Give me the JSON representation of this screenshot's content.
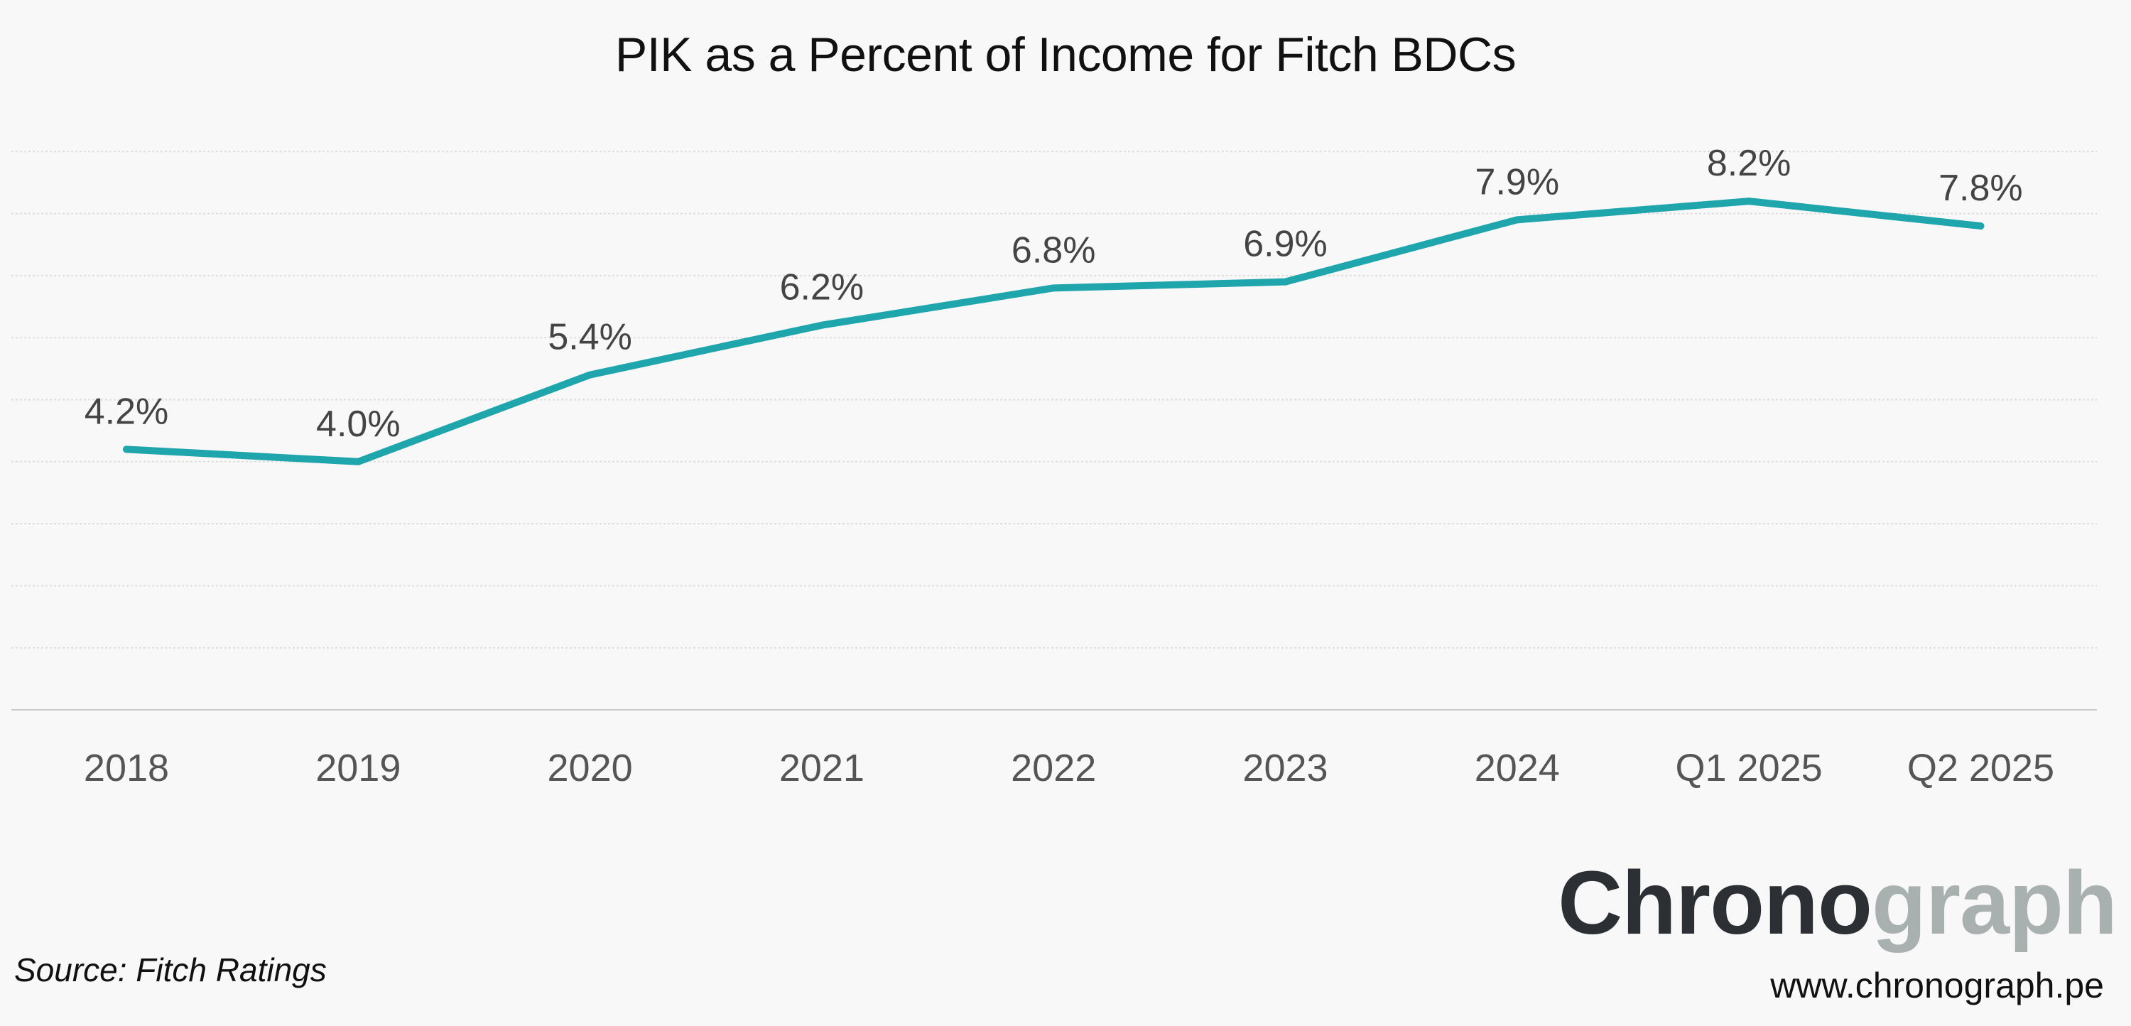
{
  "chart_data": {
    "type": "line",
    "title": "PIK as a Percent of Income for Fitch BDCs",
    "categories": [
      "2018",
      "2019",
      "2020",
      "2021",
      "2022",
      "2023",
      "2024",
      "Q1 2025",
      "Q2 2025"
    ],
    "series": [
      {
        "name": "PIK as a Percent of Income",
        "values": [
          4.2,
          4.0,
          5.4,
          6.2,
          6.8,
          6.9,
          7.9,
          8.2,
          7.8
        ],
        "data_labels": [
          "4.2%",
          "4.0%",
          "5.4%",
          "6.2%",
          "6.8%",
          "6.9%",
          "7.9%",
          "8.2%",
          "7.8%"
        ]
      }
    ],
    "xlabel": "",
    "ylabel": "",
    "ylim": [
      0,
      9
    ],
    "gridlines": [
      1,
      2,
      3,
      4,
      5,
      6,
      7,
      8,
      9
    ],
    "grid": true,
    "legend": "none"
  },
  "source": "Source: Fitch Ratings",
  "brand": {
    "logo_part_a": "Chrono",
    "logo_part_b": "graph",
    "url": "www.chronograph.pe"
  },
  "colors": {
    "line": "#1fa5ac",
    "grid": "#dddddd",
    "axis": "#cccccc",
    "background": "#f8f8f8"
  }
}
